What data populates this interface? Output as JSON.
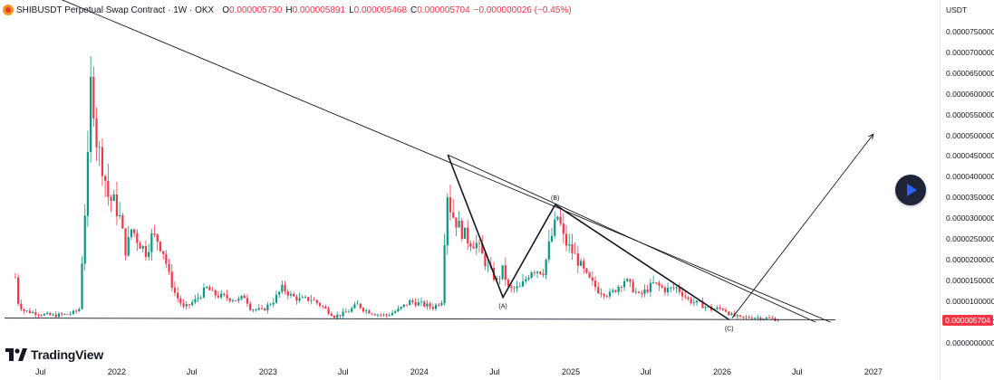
{
  "header": {
    "symbol": "SHIBUSDT Perpetual Swap Contract · 1W · OKX",
    "open_label": "O",
    "open_value": "0.000005730",
    "high_label": "H",
    "high_value": "0.000005891",
    "low_label": "L",
    "low_value": "0.000005468",
    "close_label": "C",
    "close_value": "0.000005704",
    "change_value": "−0.000000026 (−0.45%)"
  },
  "price_axis": {
    "unit": "USDT",
    "last_price": "0.000005704"
  },
  "branding": {
    "logo_text": "TradingView"
  },
  "icons": {
    "symbol": "shib-coin-icon",
    "play": "play-icon",
    "logo": "tradingview-logo-icon"
  },
  "colors": {
    "up": "#089981",
    "down": "#f23645",
    "accent": "#2962ff",
    "line": "#131722"
  },
  "chart_data": {
    "type": "candlestick",
    "timeframe": "1W",
    "ylim": [
      0,
      7.8e-05
    ],
    "y_ticks": [
      {
        "value": 7.5e-05,
        "label": "0.0000750000"
      },
      {
        "value": 7e-05,
        "label": "0.0000700000"
      },
      {
        "value": 6.5e-05,
        "label": "0.0000650000"
      },
      {
        "value": 6e-05,
        "label": "0.0000600000"
      },
      {
        "value": 5.5e-05,
        "label": "0.0000550000"
      },
      {
        "value": 5e-05,
        "label": "0.0000500000"
      },
      {
        "value": 4.5e-05,
        "label": "0.0000450000"
      },
      {
        "value": 4e-05,
        "label": "0.0000400000"
      },
      {
        "value": 3.5e-05,
        "label": "0.0000350000"
      },
      {
        "value": 3e-05,
        "label": "0.0000300000"
      },
      {
        "value": 2.5e-05,
        "label": "0.0000250000"
      },
      {
        "value": 2e-05,
        "label": "0.0000200000"
      },
      {
        "value": 1.5e-05,
        "label": "0.0000150000"
      },
      {
        "value": 1e-05,
        "label": "0.0000100000"
      },
      {
        "value": 5e-06,
        "label": "0.0000050000"
      },
      {
        "value": 0,
        "label": "0.0000000000"
      }
    ],
    "x_ticks": [
      {
        "date": "2021-07-01",
        "label": "Jul"
      },
      {
        "date": "2022-01-01",
        "label": "2022"
      },
      {
        "date": "2022-07-01",
        "label": "Jul"
      },
      {
        "date": "2023-01-01",
        "label": "2023"
      },
      {
        "date": "2023-07-01",
        "label": "Jul"
      },
      {
        "date": "2024-01-01",
        "label": "2024"
      },
      {
        "date": "2024-07-01",
        "label": "Jul"
      },
      {
        "date": "2025-01-01",
        "label": "2025"
      },
      {
        "date": "2025-07-01",
        "label": "Jul"
      },
      {
        "date": "2026-01-01",
        "label": "2026"
      },
      {
        "date": "2026-07-01",
        "label": "Jul"
      },
      {
        "date": "2027-01-01",
        "label": "2027"
      }
    ],
    "xlim": [
      "2021-03-25",
      "2027-06-10"
    ],
    "price_path": [
      [
        "2021-05-01",
        1.6e-05
      ],
      [
        "2021-05-08",
        1e-05
      ],
      [
        "2021-05-20",
        8e-06
      ],
      [
        "2021-06-15",
        7.5e-06
      ],
      [
        "2021-07-10",
        7e-06
      ],
      [
        "2021-08-01",
        6.8e-06
      ],
      [
        "2021-08-25",
        7e-06
      ],
      [
        "2021-09-20",
        7.5e-06
      ],
      [
        "2021-10-03",
        8.5e-06
      ],
      [
        "2021-10-10",
        2.2e-05
      ],
      [
        "2021-10-24",
        4.5e-05
      ],
      [
        "2021-10-31",
        6.5e-05
      ],
      [
        "2021-11-07",
        5.7e-05
      ],
      [
        "2021-11-14",
        4.8e-05
      ],
      [
        "2021-11-28",
        4.3e-05
      ],
      [
        "2021-12-12",
        3.5e-05
      ],
      [
        "2021-12-26",
        3.4e-05
      ],
      [
        "2022-01-09",
        3e-05
      ],
      [
        "2022-01-23",
        2.2e-05
      ],
      [
        "2022-02-06",
        2.8e-05
      ],
      [
        "2022-02-20",
        2.5e-05
      ],
      [
        "2022-03-13",
        2.2e-05
      ],
      [
        "2022-03-27",
        2.6e-05
      ],
      [
        "2022-04-10",
        2.5e-05
      ],
      [
        "2022-04-24",
        2.2e-05
      ],
      [
        "2022-05-08",
        1.6e-05
      ],
      [
        "2022-05-22",
        1.2e-05
      ],
      [
        "2022-06-12",
        8.5e-06
      ],
      [
        "2022-07-10",
        1.05e-05
      ],
      [
        "2022-08-07",
        1.35e-05
      ],
      [
        "2022-08-21",
        1.2e-05
      ],
      [
        "2022-09-18",
        1.12e-05
      ],
      [
        "2022-10-23",
        1.05e-05
      ],
      [
        "2022-11-06",
        1.15e-05
      ],
      [
        "2022-11-20",
        8.5e-06
      ],
      [
        "2022-12-18",
        8e-06
      ],
      [
        "2023-01-15",
        1.05e-05
      ],
      [
        "2023-02-05",
        1.35e-05
      ],
      [
        "2023-02-26",
        1.15e-05
      ],
      [
        "2023-03-19",
        1.06e-05
      ],
      [
        "2023-04-16",
        1.08e-05
      ],
      [
        "2023-05-14",
        8.8e-06
      ],
      [
        "2023-06-11",
        6.6e-06
      ],
      [
        "2023-07-09",
        7.5e-06
      ],
      [
        "2023-08-06",
        9.5e-06
      ],
      [
        "2023-08-20",
        8.2e-06
      ],
      [
        "2023-09-17",
        7.2e-06
      ],
      [
        "2023-10-15",
        6.8e-06
      ],
      [
        "2023-11-12",
        8.2e-06
      ],
      [
        "2023-12-10",
        1.02e-05
      ],
      [
        "2024-01-07",
        9.5e-06
      ],
      [
        "2024-02-04",
        8.8e-06
      ],
      [
        "2024-02-25",
        1.05e-05
      ],
      [
        "2024-03-03",
        2.8e-05
      ],
      [
        "2024-03-10",
        3.8e-05
      ],
      [
        "2024-03-17",
        3.2e-05
      ],
      [
        "2024-04-07",
        2.8e-05
      ],
      [
        "2024-04-28",
        2.5e-05
      ],
      [
        "2024-05-19",
        2.4e-05
      ],
      [
        "2024-06-16",
        1.8e-05
      ],
      [
        "2024-07-07",
        1.5e-05
      ],
      [
        "2024-07-21",
        1.8e-05
      ],
      [
        "2024-08-04",
        1.3e-05
      ],
      [
        "2024-09-01",
        1.35e-05
      ],
      [
        "2024-09-29",
        1.8e-05
      ],
      [
        "2024-10-27",
        1.75e-05
      ],
      [
        "2024-11-10",
        2.4e-05
      ],
      [
        "2024-12-01",
        3.1e-05
      ],
      [
        "2024-12-15",
        2.5e-05
      ],
      [
        "2025-01-12",
        2.1e-05
      ],
      [
        "2025-02-09",
        1.6e-05
      ],
      [
        "2025-03-09",
        1.28e-05
      ],
      [
        "2025-04-06",
        1.18e-05
      ],
      [
        "2025-05-11",
        1.55e-05
      ],
      [
        "2025-06-15",
        1.15e-05
      ],
      [
        "2025-07-20",
        1.45e-05
      ],
      [
        "2025-08-17",
        1.3e-05
      ],
      [
        "2025-09-14",
        1.35e-05
      ],
      [
        "2025-10-12",
        1.05e-05
      ],
      [
        "2025-11-09",
        9.5e-06
      ],
      [
        "2025-12-07",
        8.3e-06
      ],
      [
        "2026-01-04",
        8.5e-06
      ],
      [
        "2026-01-25",
        6.8e-06
      ],
      [
        "2026-02-15",
        6.2e-06
      ],
      [
        "2026-03-15",
        6.4e-06
      ],
      [
        "2026-04-12",
        6.2e-06
      ],
      [
        "2026-05-03",
        6e-06
      ],
      [
        "2026-05-17",
        5.704e-06
      ]
    ],
    "trendlines": [
      {
        "name": "descending-resistance-line",
        "from": [
          "2021-07-01",
          8.5e-05
        ],
        "to": [
          "2026-09-20",
          5.2e-06
        ]
      },
      {
        "name": "upper-channel-line",
        "from": [
          "2024-03-10",
          4.55e-05
        ],
        "to": [
          "2026-08-15",
          5.2e-06
        ]
      },
      {
        "name": "horizontal-support-line",
        "from": [
          "2021-04-05",
          6.2e-06
        ],
        "to": [
          "2026-10-01",
          5.8e-06
        ]
      },
      {
        "name": "abc-wave-line",
        "points": [
          [
            "2024-03-10",
            4.55e-05
          ],
          [
            "2024-07-21",
            1.12e-05
          ],
          [
            "2024-11-24",
            3.35e-05
          ],
          [
            "2026-01-18",
            5.8e-06
          ]
        ]
      },
      {
        "name": "projection-arrow",
        "from": [
          "2026-01-25",
          6.2e-06
        ],
        "to": [
          "2027-01-01",
          5.05e-05
        ]
      }
    ],
    "wave_labels": [
      {
        "text": "(A)",
        "date": "2024-07-21",
        "value": 1.12e-05,
        "pos": "below"
      },
      {
        "text": "(B)",
        "date": "2024-11-24",
        "value": 3.35e-05,
        "pos": "above"
      },
      {
        "text": "(C)",
        "date": "2026-01-18",
        "value": 5.8e-06,
        "pos": "below"
      }
    ]
  }
}
